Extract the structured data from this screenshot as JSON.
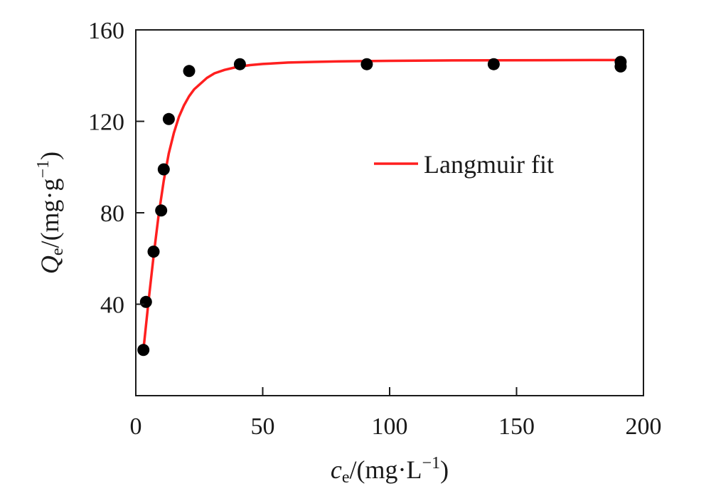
{
  "chart_data": {
    "type": "scatter",
    "xlabel": {
      "symbol": "c",
      "subscript": "e",
      "unit": "/(mg·L",
      "sup": "−1",
      "close": ")"
    },
    "ylabel": {
      "symbol": "Q",
      "subscript": "e",
      "unit": "/(mg·g",
      "sup": "−1",
      "close": ")"
    },
    "xlim": [
      0,
      200
    ],
    "ylim": [
      0,
      160
    ],
    "xticks": [
      0,
      50,
      100,
      150,
      200
    ],
    "yticks": [
      40,
      80,
      120,
      160
    ],
    "grid": false,
    "legend_position": "right",
    "series": [
      {
        "kind": "points",
        "color": "#000000",
        "x": [
          3,
          4,
          7,
          10,
          11,
          13,
          21,
          41,
          91,
          141,
          191,
          191
        ],
        "y": [
          20,
          41,
          63,
          81,
          99,
          121,
          142,
          145,
          145,
          145,
          146,
          144
        ]
      },
      {
        "name": "Langmuir fit",
        "kind": "line",
        "color": "#ff1f1f",
        "x": [
          3,
          5,
          7,
          9,
          11,
          13,
          15,
          17,
          19,
          21,
          23,
          25,
          28,
          31,
          35,
          40,
          45,
          50,
          60,
          70,
          80,
          90,
          100,
          120,
          140,
          160,
          180,
          191
        ],
        "y": [
          20,
          41,
          61,
          79,
          94,
          106,
          115,
          122,
          127,
          131,
          134,
          136,
          139,
          141,
          142.5,
          143.8,
          144.6,
          145.1,
          145.7,
          146.0,
          146.2,
          146.35,
          146.45,
          146.6,
          146.7,
          146.75,
          146.8,
          146.8
        ]
      }
    ]
  }
}
